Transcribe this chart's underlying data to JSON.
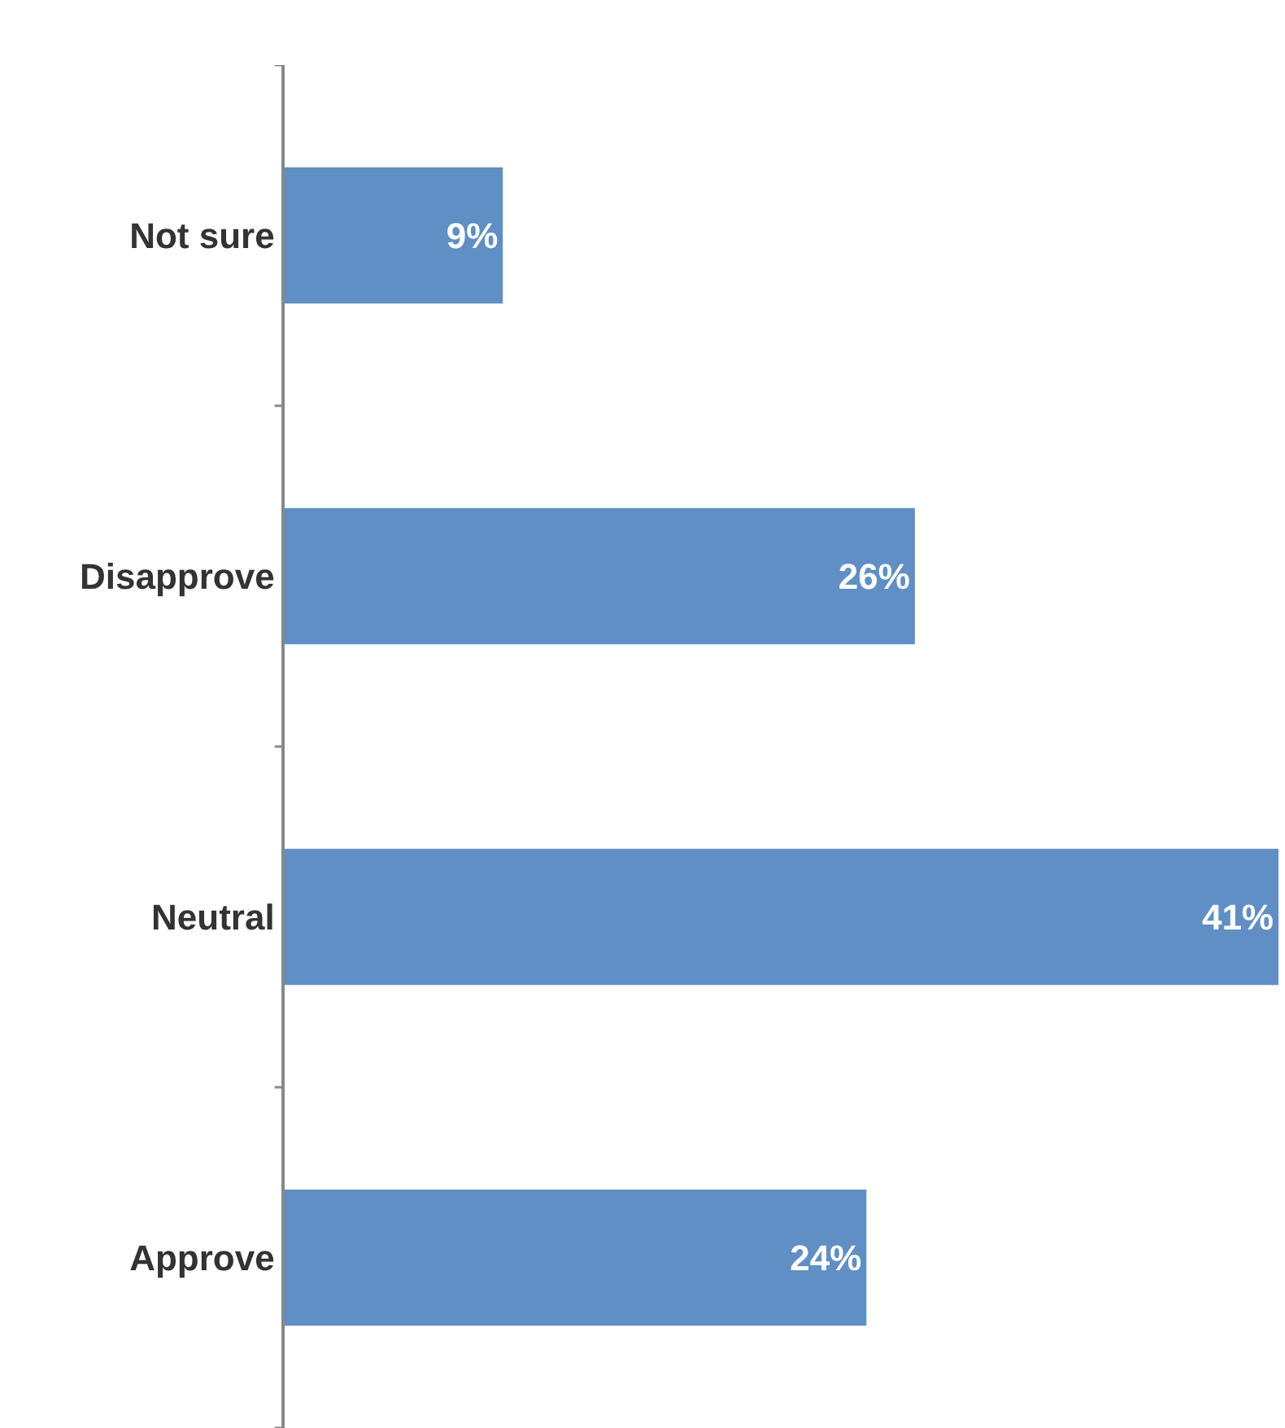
{
  "chart_data": {
    "type": "bar",
    "orientation": "horizontal",
    "categories": [
      "Not sure",
      "Disapprove",
      "Neutral",
      "Approve"
    ],
    "values": [
      9,
      26,
      41,
      24
    ],
    "value_labels": [
      "9%",
      "26%",
      "41%",
      "24%"
    ],
    "color": "#5f8fc5",
    "xlim": [
      0,
      41
    ],
    "tick_labels": "y"
  }
}
